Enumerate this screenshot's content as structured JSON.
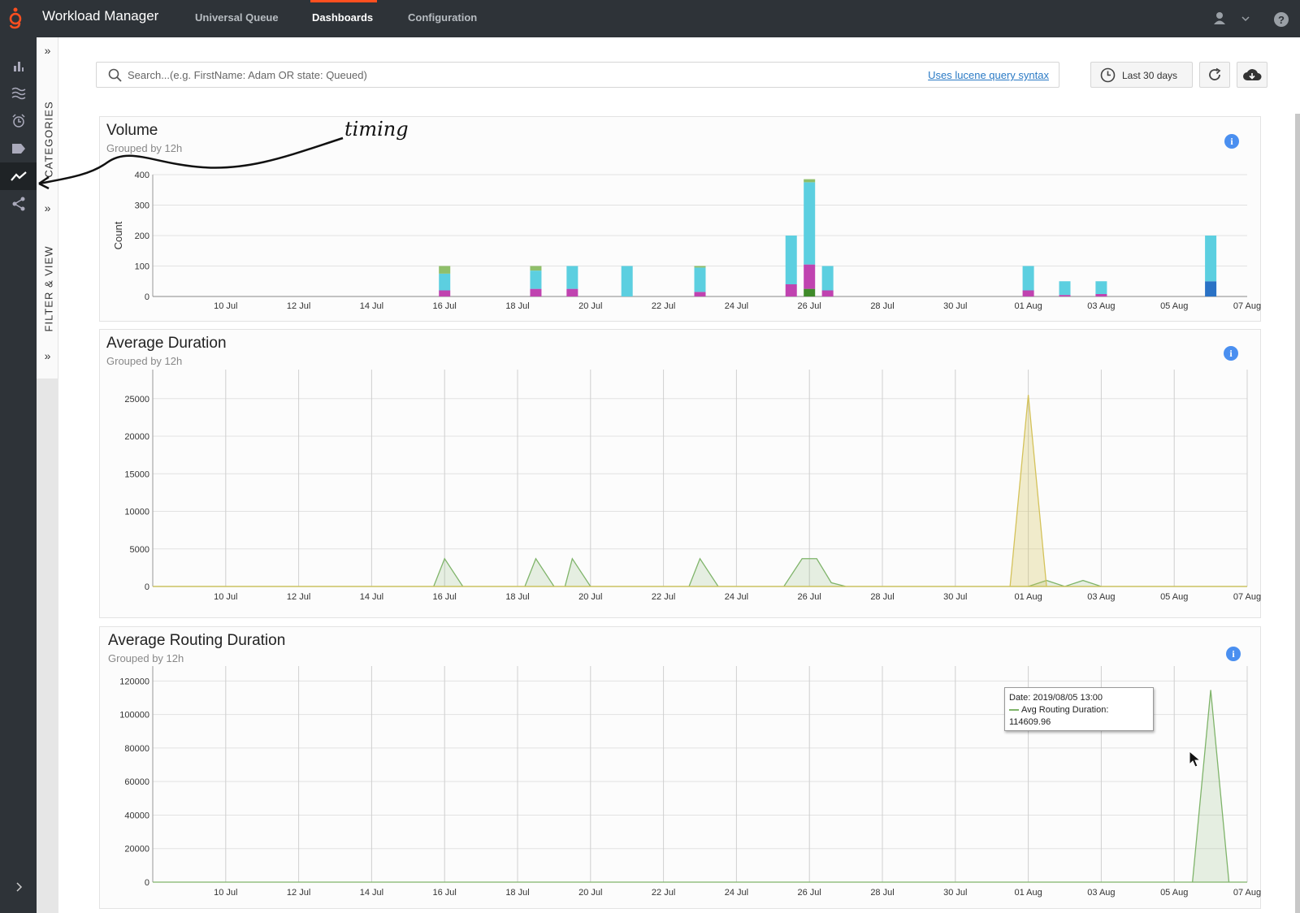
{
  "app": {
    "title": "Workload Manager"
  },
  "nav": {
    "tabs": [
      "Universal Queue",
      "Dashboards",
      "Configuration"
    ],
    "active": "Dashboards"
  },
  "side_panel": {
    "categories_label": "CATEGORIES",
    "filter_label": "FILTER & VIEW"
  },
  "search": {
    "placeholder": "Search...(e.g. FirstName: Adam OR state: Queued)",
    "value": "",
    "lucene_link": "Uses lucene query syntax"
  },
  "toolbar": {
    "date_range": "Last 30 days"
  },
  "annotation": "timing",
  "x_ticks": [
    "10 Jul",
    "12 Jul",
    "14 Jul",
    "16 Jul",
    "18 Jul",
    "20 Jul",
    "22 Jul",
    "24 Jul",
    "26 Jul",
    "28 Jul",
    "30 Jul",
    "01 Aug",
    "03 Aug",
    "05 Aug",
    "07 Aug"
  ],
  "tooltip": {
    "date": "Date: 2019/08/05 13:00",
    "series": "Avg Routing Duration:",
    "value": "114609.96"
  },
  "colors": {
    "accent": "#ff4f1f",
    "cyan": "#5ccfe0",
    "magenta": "#c043b0",
    "green": "#8fbf6a",
    "dark_green": "#3f8a2a",
    "blue": "#2a72c5",
    "area_green": "#7fb46a",
    "area_yellow": "#d4c25a"
  },
  "chart_data": [
    {
      "type": "bar",
      "title": "Volume",
      "subtitle": "Grouped by 12h",
      "ylabel": "Count",
      "ylim": [
        0,
        400
      ],
      "yticks": [
        0,
        100,
        200,
        300,
        400
      ],
      "x_range_days": [
        8,
        38
      ],
      "stacked": true,
      "bars": [
        {
          "x": 16.0,
          "cyan": 55,
          "magenta": 20,
          "green": 25
        },
        {
          "x": 18.5,
          "cyan": 60,
          "magenta": 25,
          "green": 15
        },
        {
          "x": 19.5,
          "cyan": 75,
          "magenta": 25
        },
        {
          "x": 21.0,
          "cyan": 100
        },
        {
          "x": 23.0,
          "cyan": 80,
          "magenta": 15,
          "green": 5
        },
        {
          "x": 25.5,
          "cyan": 160,
          "magenta": 40
        },
        {
          "x": 26.0,
          "cyan": 270,
          "magenta": 80,
          "dark_green": 25,
          "green": 10
        },
        {
          "x": 26.5,
          "cyan": 80,
          "magenta": 20
        },
        {
          "x": 32.0,
          "cyan": 80,
          "magenta": 20
        },
        {
          "x": 33.0,
          "cyan": 45,
          "magenta": 5
        },
        {
          "x": 34.0,
          "cyan": 42,
          "magenta": 8
        },
        {
          "x": 37.0,
          "cyan": 150,
          "blue": 50
        }
      ]
    },
    {
      "type": "area",
      "title": "Average Duration",
      "subtitle": "Grouped by 12h",
      "ylim": [
        0,
        28000
      ],
      "yticks": [
        0,
        5000,
        10000,
        15000,
        20000,
        25000
      ],
      "x_range_days": [
        8,
        38
      ],
      "series": [
        {
          "color": "green",
          "points": [
            [
              8,
              0
            ],
            [
              15.7,
              0
            ],
            [
              16.0,
              3700
            ],
            [
              16.5,
              0
            ],
            [
              18.2,
              0
            ],
            [
              18.5,
              3700
            ],
            [
              19.0,
              0
            ],
            [
              19.3,
              0
            ],
            [
              19.5,
              3700
            ],
            [
              20.0,
              0
            ],
            [
              22.7,
              0
            ],
            [
              23.0,
              3700
            ],
            [
              23.5,
              0
            ],
            [
              25.3,
              0
            ],
            [
              25.8,
              3700
            ],
            [
              26.2,
              3700
            ],
            [
              26.6,
              500
            ],
            [
              27.0,
              0
            ],
            [
              32.0,
              0
            ],
            [
              32.5,
              800
            ],
            [
              33.0,
              0
            ],
            [
              33.5,
              800
            ],
            [
              34.0,
              0
            ],
            [
              38,
              0
            ]
          ]
        },
        {
          "color": "yellow",
          "points": [
            [
              8,
              0
            ],
            [
              31.5,
              0
            ],
            [
              32.0,
              25500
            ],
            [
              32.5,
              0
            ],
            [
              38,
              0
            ]
          ]
        }
      ]
    },
    {
      "type": "area",
      "title": "Average Routing Duration",
      "subtitle": "Grouped by 12h",
      "ylim": [
        0,
        125000
      ],
      "yticks": [
        0,
        20000,
        40000,
        60000,
        80000,
        100000,
        120000
      ],
      "x_range_days": [
        8,
        38
      ],
      "series": [
        {
          "color": "green",
          "points": [
            [
              8,
              0
            ],
            [
              36.5,
              0
            ],
            [
              37.0,
              114609.96
            ],
            [
              37.5,
              0
            ],
            [
              38,
              0
            ]
          ]
        }
      ]
    }
  ]
}
